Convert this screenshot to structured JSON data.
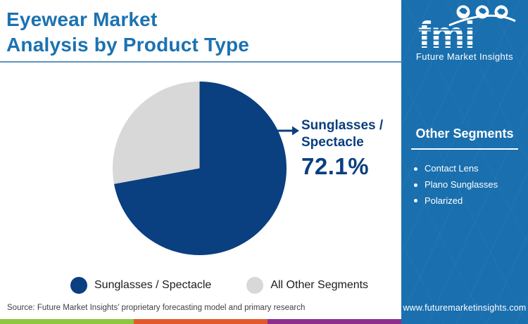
{
  "header": {
    "title_line1": "Eyewear Market",
    "title_line2": "Analysis by Product Type"
  },
  "chart_data": {
    "type": "pie",
    "title": "Eyewear Market Analysis by Product Type",
    "slices": [
      {
        "label": "Sunglasses / Spectacle",
        "value": 72.1,
        "color": "#0A3F80"
      },
      {
        "label": "All Other Segments",
        "value": 27.9,
        "color": "#D8D8D8"
      }
    ],
    "start_angle_deg": 0,
    "direction": "clockwise",
    "annotation": {
      "target": "Sunglasses / Spectacle",
      "value_text": "72.1%"
    },
    "legend_position": "bottom"
  },
  "callout": {
    "label_line1": "Sunglasses /",
    "label_line2": "Spectacle",
    "value": "72.1%"
  },
  "sidebar": {
    "logo_text": "fmi",
    "logo_subtext": "Future Market Insights",
    "logo_icons": [
      "globe-americas-icon",
      "globe-europe-icon",
      "globe-asia-icon"
    ],
    "section_title": "Other Segments",
    "items": [
      "Contact Lens",
      "Plano Sunglasses",
      "Polarized"
    ],
    "website": "www.futuremarketinsights.com",
    "background_color": "#1A6FAE"
  },
  "footer": {
    "source": "Source: Future Market Insights’ proprietary forecasting model and primary research",
    "strip_colors": [
      "#8DC63F",
      "#E2582A",
      "#8E2E8C"
    ]
  },
  "colors": {
    "title_blue": "#1B72B1",
    "callout_navy": "#0A3F80",
    "divider_blue": "#5C90BE"
  }
}
